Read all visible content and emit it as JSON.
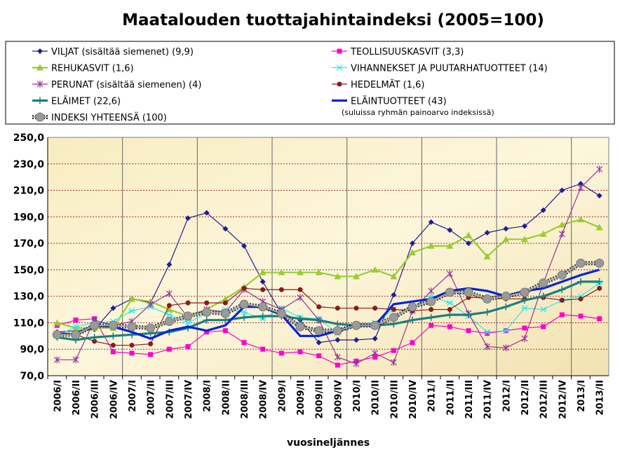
{
  "chart_data": {
    "type": "line",
    "title": "Maatalouden tuottajahintaindeksi (2005=100)",
    "xlabel": "vuosineljännes",
    "ylabel": "",
    "ylim": [
      70,
      250
    ],
    "yticks": [
      "70,0",
      "90,0",
      "110,0",
      "130,0",
      "150,0",
      "170,0",
      "190,0",
      "210,0",
      "230,0",
      "250,0"
    ],
    "grid": true,
    "legend_placement": "top",
    "legend_note": "(suluissa ryhmän painoarvo indeksissä)",
    "categories": [
      "2006/I",
      "2006/II",
      "2006/III",
      "2006/IV",
      "2007/I",
      "2007/II",
      "2007/III",
      "2007/IV",
      "2008/I",
      "2008/II",
      "2008/III",
      "2008/IV",
      "2009/I",
      "2009/II",
      "2009/III",
      "2009/IV",
      "2010/I",
      "2010/II",
      "2010/III",
      "2010/IV",
      "2011/I",
      "2011/II",
      "2011/III",
      "2011/IV",
      "2012/I",
      "2012/II",
      "2012/III",
      "2012/IV",
      "2013/I",
      "2013/II"
    ],
    "series": [
      {
        "name": "VILJAT (sisältää siemenet) (9,9)",
        "color": "#1f1f8f",
        "marker": "diamond",
        "width": 1.2,
        "values": [
          103,
          104,
          105,
          121,
          128,
          125,
          154,
          189,
          193,
          181,
          168,
          141,
          117,
          112,
          95,
          97,
          97,
          98,
          131,
          170,
          186,
          180,
          170,
          178,
          181,
          183,
          195,
          210,
          215,
          206
        ]
      },
      {
        "name": "TEOLLISUUSKASVIT (3,3)",
        "color": "#ff00cc",
        "marker": "square",
        "width": 1.2,
        "values": [
          108,
          112,
          113,
          88,
          87,
          86,
          90,
          92,
          103,
          104,
          95,
          90,
          87,
          88,
          85,
          78,
          81,
          84,
          89,
          95,
          108,
          107,
          104,
          102,
          104,
          106,
          107,
          116,
          115,
          113
        ]
      },
      {
        "name": "REHUKASVIT (1,6)",
        "color": "#99cc33",
        "marker": "triangle",
        "width": 2.2,
        "values": [
          110,
          106,
          106,
          106,
          128,
          126,
          120,
          115,
          120,
          128,
          137,
          148,
          148,
          148,
          148,
          145,
          145,
          150,
          145,
          163,
          168,
          168,
          176,
          160,
          173,
          173,
          177,
          184,
          188,
          182
        ]
      },
      {
        "name": "VIHANNEKSET JA PUUTARHATUOTTEET (14)",
        "color": "#33e6ee",
        "marker": "star",
        "width": 1.2,
        "values": [
          100,
          107,
          110,
          111,
          119,
          122,
          116,
          110,
          117,
          120,
          118,
          113,
          121,
          114,
          113,
          102,
          109,
          110,
          120,
          120,
          130,
          125,
          115,
          103,
          104,
          121,
          120,
          127,
          130,
          140
        ]
      },
      {
        "name": "PERUNAT (sisältää siemenen) (4)",
        "color": "#993399",
        "marker": "x",
        "width": 1.2,
        "values": [
          82,
          82,
          112,
          108,
          111,
          124,
          132,
          114,
          120,
          118,
          135,
          126,
          120,
          129,
          112,
          84,
          79,
          87,
          80,
          119,
          134,
          147,
          117,
          92,
          91,
          98,
          140,
          177,
          212,
          226
        ]
      },
      {
        "name": "HEDELMÄT (1,6)",
        "color": "#8b1a1a",
        "marker": "circle-small",
        "width": 1.2,
        "values": [
          101,
          101,
          96,
          93,
          93,
          94,
          123,
          125,
          125,
          125,
          136,
          135,
          135,
          135,
          122,
          121,
          121,
          121,
          120,
          119,
          120,
          120,
          129,
          129,
          128,
          128,
          129,
          127,
          128,
          136
        ]
      },
      {
        "name": "ELÄIMET (22,6)",
        "color": "#1a8080",
        "marker": "plus",
        "width": 3.2,
        "values": [
          99,
          97,
          99,
          100,
          101,
          102,
          103,
          106,
          112,
          112,
          114,
          115,
          115,
          113,
          112,
          109,
          108,
          108,
          109,
          112,
          114,
          116,
          116,
          118,
          122,
          127,
          130,
          135,
          141,
          141
        ]
      },
      {
        "name": "ELÄINTUOTTEET (43)",
        "color": "#0022dd",
        "marker": "none",
        "width": 3.2,
        "values": [
          102,
          101,
          108,
          107,
          103,
          98,
          104,
          107,
          104,
          108,
          122,
          122,
          116,
          100,
          100,
          104,
          108,
          108,
          124,
          126,
          128,
          134,
          136,
          134,
          130,
          134,
          136,
          141,
          146,
          150
        ]
      },
      {
        "name": "INDEKSI YHTEENSÄ (100)",
        "color": "#888888",
        "marker": "circle-big",
        "width": 3.2,
        "values": [
          101,
          101,
          108,
          108,
          107,
          106,
          111,
          115,
          118,
          117,
          124,
          122,
          117,
          107,
          104,
          104,
          108,
          108,
          114,
          122,
          126,
          133,
          133,
          128,
          130,
          133,
          140,
          146,
          155,
          155
        ]
      }
    ]
  }
}
